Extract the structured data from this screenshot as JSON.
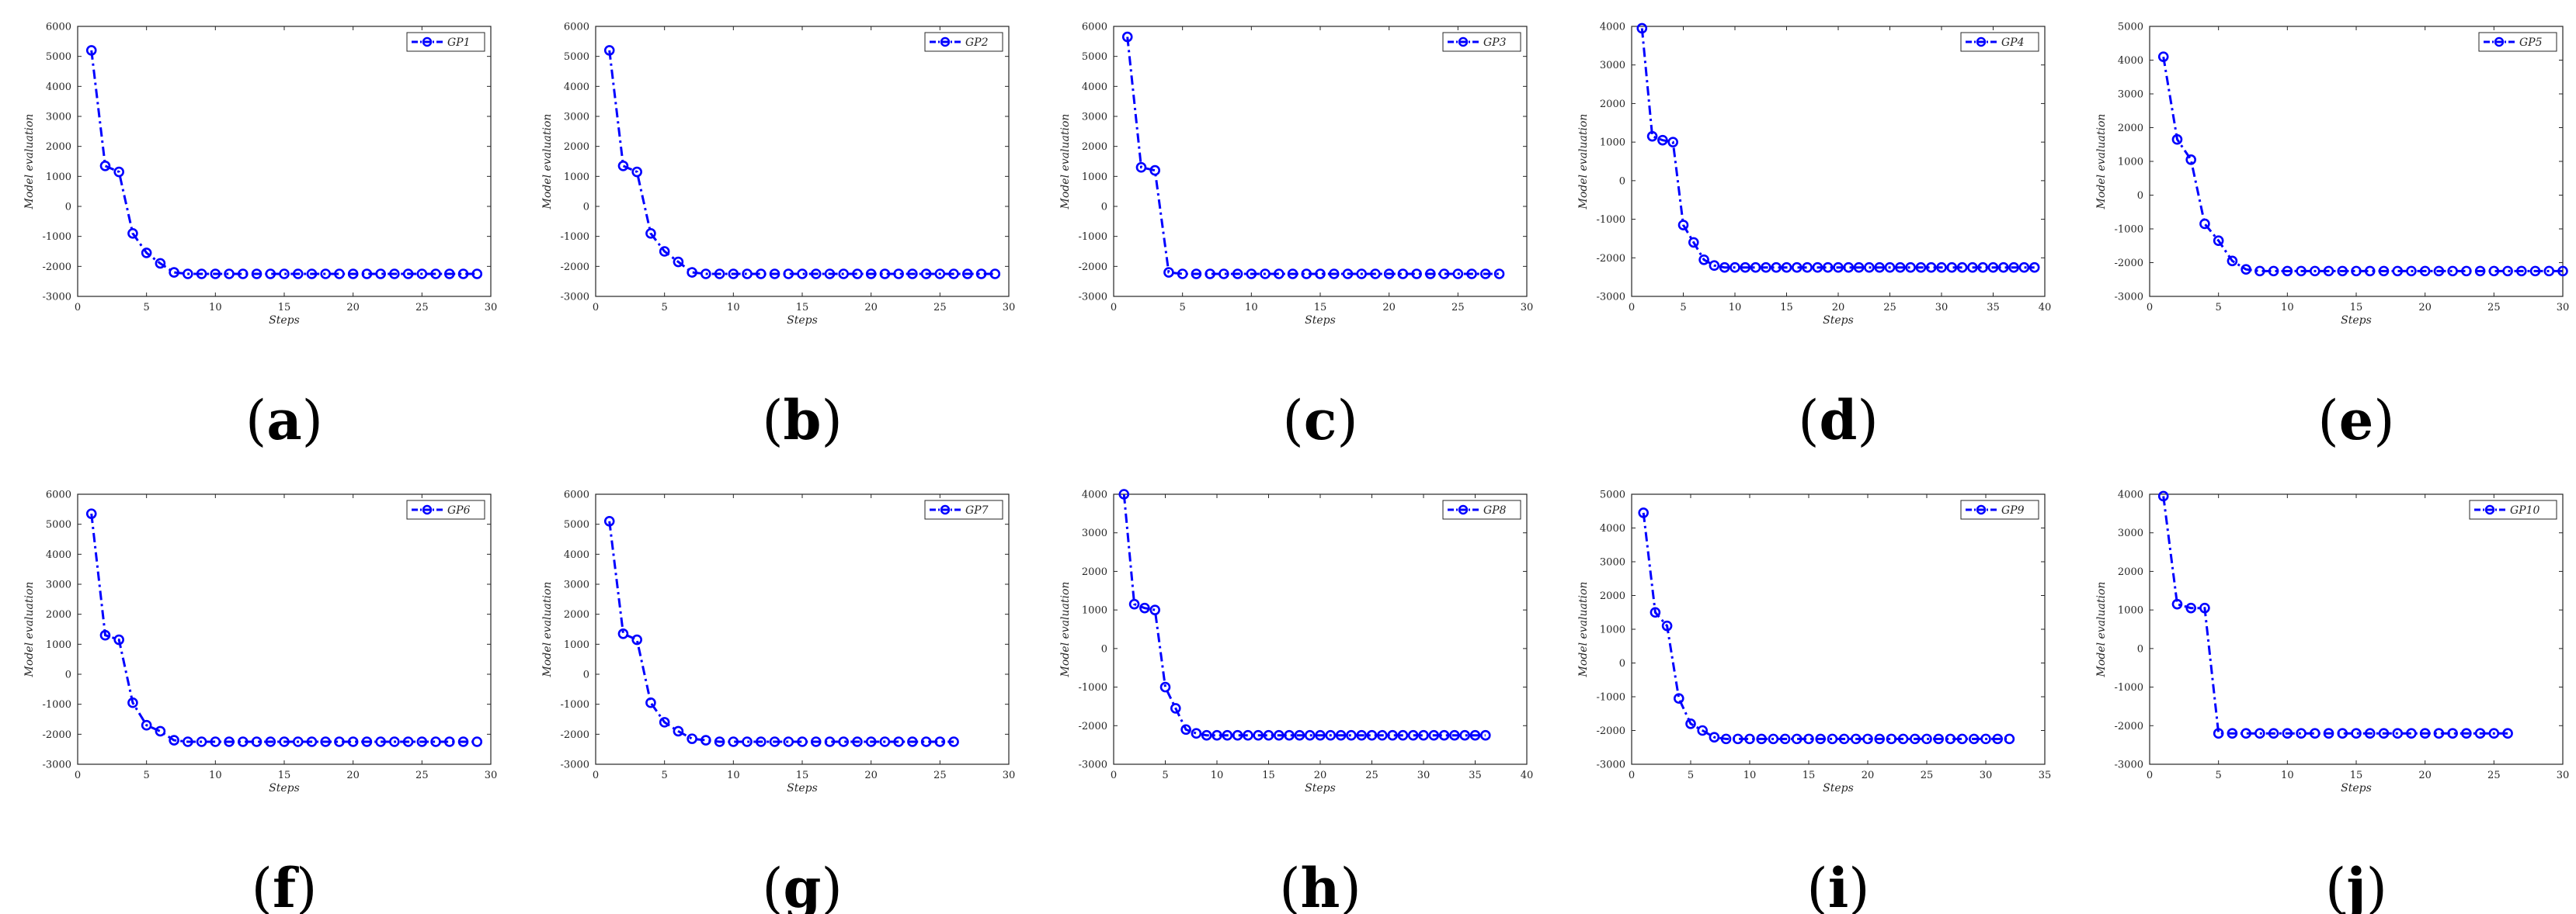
{
  "colors": {
    "series": "#0000ff",
    "axes": "#262626"
  },
  "chart_data": [
    {
      "type": "line",
      "panel_label": "a",
      "xlabel": "Steps",
      "ylabel": "Model evaluation",
      "xlim": [
        0,
        30
      ],
      "ylim": [
        -3000,
        6000
      ],
      "xticks": [
        0,
        5,
        10,
        15,
        20,
        25,
        30
      ],
      "yticks": [
        -3000,
        -2000,
        -1000,
        0,
        1000,
        2000,
        3000,
        4000,
        5000,
        6000
      ],
      "legend": "GP1",
      "legend_position": "top-right",
      "x": [
        1,
        2,
        3,
        4,
        5,
        6,
        7,
        8,
        9,
        10,
        11,
        12,
        13,
        14,
        15,
        16,
        17,
        18,
        19,
        20,
        21,
        22,
        23,
        24,
        25,
        26,
        27,
        28,
        29
      ],
      "y": [
        5200,
        1350,
        1150,
        -900,
        -1550,
        -1900,
        -2200,
        -2250,
        -2250,
        -2250,
        -2250,
        -2250,
        -2250,
        -2250,
        -2250,
        -2250,
        -2250,
        -2250,
        -2250,
        -2250,
        -2250,
        -2250,
        -2250,
        -2250,
        -2250,
        -2250,
        -2250,
        -2250,
        -2250
      ]
    },
    {
      "type": "line",
      "panel_label": "b",
      "xlabel": "Steps",
      "ylabel": "Model evaluation",
      "xlim": [
        0,
        30
      ],
      "ylim": [
        -3000,
        6000
      ],
      "xticks": [
        0,
        5,
        10,
        15,
        20,
        25,
        30
      ],
      "yticks": [
        -3000,
        -2000,
        -1000,
        0,
        1000,
        2000,
        3000,
        4000,
        5000,
        6000
      ],
      "legend": "GP2",
      "legend_position": "top-right",
      "x": [
        1,
        2,
        3,
        4,
        5,
        6,
        7,
        8,
        9,
        10,
        11,
        12,
        13,
        14,
        15,
        16,
        17,
        18,
        19,
        20,
        21,
        22,
        23,
        24,
        25,
        26,
        27,
        28,
        29
      ],
      "y": [
        5200,
        1350,
        1150,
        -900,
        -1500,
        -1850,
        -2200,
        -2250,
        -2250,
        -2250,
        -2250,
        -2250,
        -2250,
        -2250,
        -2250,
        -2250,
        -2250,
        -2250,
        -2250,
        -2250,
        -2250,
        -2250,
        -2250,
        -2250,
        -2250,
        -2250,
        -2250,
        -2250,
        -2250
      ]
    },
    {
      "type": "line",
      "panel_label": "c",
      "xlabel": "Steps",
      "ylabel": "Model evaluation",
      "xlim": [
        0,
        30
      ],
      "ylim": [
        -3000,
        6000
      ],
      "xticks": [
        0,
        5,
        10,
        15,
        20,
        25,
        30
      ],
      "yticks": [
        -3000,
        -2000,
        -1000,
        0,
        1000,
        2000,
        3000,
        4000,
        5000,
        6000
      ],
      "legend": "GP3",
      "legend_position": "top-right",
      "x": [
        1,
        2,
        3,
        4,
        5,
        6,
        7,
        8,
        9,
        10,
        11,
        12,
        13,
        14,
        15,
        16,
        17,
        18,
        19,
        20,
        21,
        22,
        23,
        24,
        25,
        26,
        27,
        28
      ],
      "y": [
        5650,
        1300,
        1200,
        -2200,
        -2250,
        -2250,
        -2250,
        -2250,
        -2250,
        -2250,
        -2250,
        -2250,
        -2250,
        -2250,
        -2250,
        -2250,
        -2250,
        -2250,
        -2250,
        -2250,
        -2250,
        -2250,
        -2250,
        -2250,
        -2250,
        -2250,
        -2250,
        -2250
      ]
    },
    {
      "type": "line",
      "panel_label": "d",
      "xlabel": "Steps",
      "ylabel": "Model evaluation",
      "xlim": [
        0,
        40
      ],
      "ylim": [
        -3000,
        4000
      ],
      "xticks": [
        0,
        5,
        10,
        15,
        20,
        25,
        30,
        35,
        40
      ],
      "yticks": [
        -3000,
        -2000,
        -1000,
        0,
        1000,
        2000,
        3000,
        4000
      ],
      "legend": "GP4",
      "legend_position": "top-right",
      "x": [
        1,
        2,
        3,
        4,
        5,
        6,
        7,
        8,
        9,
        10,
        11,
        12,
        13,
        14,
        15,
        16,
        17,
        18,
        19,
        20,
        21,
        22,
        23,
        24,
        25,
        26,
        27,
        28,
        29,
        30,
        31,
        32,
        33,
        34,
        35,
        36,
        37,
        38,
        39
      ],
      "y": [
        3950,
        1150,
        1050,
        1000,
        -1150,
        -1600,
        -2050,
        -2200,
        -2250,
        -2250,
        -2250,
        -2250,
        -2250,
        -2250,
        -2250,
        -2250,
        -2250,
        -2250,
        -2250,
        -2250,
        -2250,
        -2250,
        -2250,
        -2250,
        -2250,
        -2250,
        -2250,
        -2250,
        -2250,
        -2250,
        -2250,
        -2250,
        -2250,
        -2250,
        -2250,
        -2250,
        -2250,
        -2250,
        -2250
      ]
    },
    {
      "type": "line",
      "panel_label": "e",
      "xlabel": "Steps",
      "ylabel": "Model evaluation",
      "xlim": [
        0,
        30
      ],
      "ylim": [
        -3000,
        5000
      ],
      "xticks": [
        0,
        5,
        10,
        15,
        20,
        25,
        30
      ],
      "yticks": [
        -3000,
        -2000,
        -1000,
        0,
        1000,
        2000,
        3000,
        4000,
        5000
      ],
      "legend": "GP5",
      "legend_position": "top-right",
      "x": [
        1,
        2,
        3,
        4,
        5,
        6,
        7,
        8,
        9,
        10,
        11,
        12,
        13,
        14,
        15,
        16,
        17,
        18,
        19,
        20,
        21,
        22,
        23,
        24,
        25,
        26,
        27,
        28,
        29,
        30
      ],
      "y": [
        4100,
        1650,
        1050,
        -850,
        -1350,
        -1950,
        -2200,
        -2250,
        -2250,
        -2250,
        -2250,
        -2250,
        -2250,
        -2250,
        -2250,
        -2250,
        -2250,
        -2250,
        -2250,
        -2250,
        -2250,
        -2250,
        -2250,
        -2250,
        -2250,
        -2250,
        -2250,
        -2250,
        -2250,
        -2250
      ]
    },
    {
      "type": "line",
      "panel_label": "f",
      "xlabel": "Steps",
      "ylabel": "Model evaluation",
      "xlim": [
        0,
        30
      ],
      "ylim": [
        -3000,
        6000
      ],
      "xticks": [
        0,
        5,
        10,
        15,
        20,
        25,
        30
      ],
      "yticks": [
        -3000,
        -2000,
        -1000,
        0,
        1000,
        2000,
        3000,
        4000,
        5000,
        6000
      ],
      "legend": "GP6",
      "legend_position": "top-right",
      "x": [
        1,
        2,
        3,
        4,
        5,
        6,
        7,
        8,
        9,
        10,
        11,
        12,
        13,
        14,
        15,
        16,
        17,
        18,
        19,
        20,
        21,
        22,
        23,
        24,
        25,
        26,
        27,
        28,
        29
      ],
      "y": [
        5350,
        1300,
        1150,
        -950,
        -1700,
        -1900,
        -2200,
        -2250,
        -2250,
        -2250,
        -2250,
        -2250,
        -2250,
        -2250,
        -2250,
        -2250,
        -2250,
        -2250,
        -2250,
        -2250,
        -2250,
        -2250,
        -2250,
        -2250,
        -2250,
        -2250,
        -2250,
        -2250,
        -2250
      ]
    },
    {
      "type": "line",
      "panel_label": "g",
      "xlabel": "Steps",
      "ylabel": "Model evaluation",
      "xlim": [
        0,
        30
      ],
      "ylim": [
        -3000,
        6000
      ],
      "xticks": [
        0,
        5,
        10,
        15,
        20,
        25,
        30
      ],
      "yticks": [
        -3000,
        -2000,
        -1000,
        0,
        1000,
        2000,
        3000,
        4000,
        5000,
        6000
      ],
      "legend": "GP7",
      "legend_position": "top-right",
      "x": [
        1,
        2,
        3,
        4,
        5,
        6,
        7,
        8,
        9,
        10,
        11,
        12,
        13,
        14,
        15,
        16,
        17,
        18,
        19,
        20,
        21,
        22,
        23,
        24,
        25,
        26
      ],
      "y": [
        5100,
        1350,
        1150,
        -950,
        -1600,
        -1900,
        -2150,
        -2200,
        -2250,
        -2250,
        -2250,
        -2250,
        -2250,
        -2250,
        -2250,
        -2250,
        -2250,
        -2250,
        -2250,
        -2250,
        -2250,
        -2250,
        -2250,
        -2250,
        -2250,
        -2250
      ]
    },
    {
      "type": "line",
      "panel_label": "h",
      "xlabel": "Steps",
      "ylabel": "Model evaluation",
      "xlim": [
        0,
        40
      ],
      "ylim": [
        -3000,
        4000
      ],
      "xticks": [
        0,
        5,
        10,
        15,
        20,
        25,
        30,
        35,
        40
      ],
      "yticks": [
        -3000,
        -2000,
        -1000,
        0,
        1000,
        2000,
        3000,
        4000
      ],
      "legend": "GP8",
      "legend_position": "top-right",
      "x": [
        1,
        2,
        3,
        4,
        5,
        6,
        7,
        8,
        9,
        10,
        11,
        12,
        13,
        14,
        15,
        16,
        17,
        18,
        19,
        20,
        21,
        22,
        23,
        24,
        25,
        26,
        27,
        28,
        29,
        30,
        31,
        32,
        33,
        34,
        35,
        36
      ],
      "y": [
        4000,
        1150,
        1050,
        1000,
        -1000,
        -1550,
        -2100,
        -2200,
        -2250,
        -2250,
        -2250,
        -2250,
        -2250,
        -2250,
        -2250,
        -2250,
        -2250,
        -2250,
        -2250,
        -2250,
        -2250,
        -2250,
        -2250,
        -2250,
        -2250,
        -2250,
        -2250,
        -2250,
        -2250,
        -2250,
        -2250,
        -2250,
        -2250,
        -2250,
        -2250,
        -2250
      ]
    },
    {
      "type": "line",
      "panel_label": "i",
      "xlabel": "Steps",
      "ylabel": "Model evaluation",
      "xlim": [
        0,
        35
      ],
      "ylim": [
        -3000,
        5000
      ],
      "xticks": [
        0,
        5,
        10,
        15,
        20,
        25,
        30,
        35
      ],
      "yticks": [
        -3000,
        -2000,
        -1000,
        0,
        1000,
        2000,
        3000,
        4000,
        5000
      ],
      "legend": "GP9",
      "legend_position": "top-right",
      "x": [
        1,
        2,
        3,
        4,
        5,
        6,
        7,
        8,
        9,
        10,
        11,
        12,
        13,
        14,
        15,
        16,
        17,
        18,
        19,
        20,
        21,
        22,
        23,
        24,
        25,
        26,
        27,
        28,
        29,
        30,
        31,
        32
      ],
      "y": [
        4450,
        1500,
        1100,
        -1050,
        -1800,
        -2000,
        -2200,
        -2250,
        -2250,
        -2250,
        -2250,
        -2250,
        -2250,
        -2250,
        -2250,
        -2250,
        -2250,
        -2250,
        -2250,
        -2250,
        -2250,
        -2250,
        -2250,
        -2250,
        -2250,
        -2250,
        -2250,
        -2250,
        -2250,
        -2250,
        -2250,
        -2250
      ]
    },
    {
      "type": "line",
      "panel_label": "j",
      "xlabel": "Steps",
      "ylabel": "Model evaluation",
      "xlim": [
        0,
        30
      ],
      "ylim": [
        -3000,
        4000
      ],
      "xticks": [
        0,
        5,
        10,
        15,
        20,
        25,
        30
      ],
      "yticks": [
        -3000,
        -2000,
        -1000,
        0,
        1000,
        2000,
        3000,
        4000
      ],
      "legend": "GP10",
      "legend_position": "top-right",
      "x": [
        1,
        2,
        3,
        4,
        5,
        6,
        7,
        8,
        9,
        10,
        11,
        12,
        13,
        14,
        15,
        16,
        17,
        18,
        19,
        20,
        21,
        22,
        23,
        24,
        25,
        26
      ],
      "y": [
        3950,
        1150,
        1050,
        1050,
        -2200,
        -2200,
        -2200,
        -2200,
        -2200,
        -2200,
        -2200,
        -2200,
        -2200,
        -2200,
        -2200,
        -2200,
        -2200,
        -2200,
        -2200,
        -2200,
        -2200,
        -2200,
        -2200,
        -2200,
        -2200,
        -2200
      ]
    }
  ]
}
